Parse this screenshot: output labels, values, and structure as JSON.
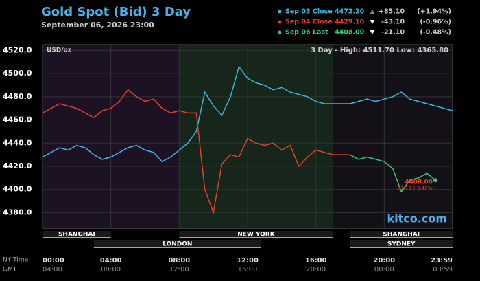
{
  "chart_data": {
    "type": "line",
    "title": "Gold Spot (Bid) 3 Day",
    "subtitle": "September 06, 2026 23:00",
    "unit_label": "USD/oz",
    "range_note": "3 Day - High: 4511.70  Low: 4365.80",
    "watermark": "kitco.com",
    "x_row_labels": [
      "NY Time",
      "GMT"
    ],
    "xlim": [
      0,
      24
    ],
    "xticks": [
      {
        "value": 0,
        "label": "00:00"
      },
      {
        "value": 4,
        "label": "04:00"
      },
      {
        "value": 8,
        "label": "08:00"
      },
      {
        "value": 12,
        "label": "12:00"
      },
      {
        "value": 16,
        "label": "16:00"
      },
      {
        "value": 20,
        "label": "20:00"
      },
      {
        "value": 24,
        "label": "23:59"
      }
    ],
    "gmt_tick_labels": [
      "04:00",
      "08:00",
      "12:00",
      "16:00",
      "20:00",
      "00:00",
      "03:59"
    ],
    "ylim": [
      4366,
      4525
    ],
    "yticks": [
      {
        "value": 4380,
        "label": "4380.0"
      },
      {
        "value": 4400,
        "label": "4400.0"
      },
      {
        "value": 4420,
        "label": "4420.0"
      },
      {
        "value": 4440,
        "label": "4440.0"
      },
      {
        "value": 4460,
        "label": "4460.0"
      },
      {
        "value": 4480,
        "label": "4480.0"
      },
      {
        "value": 4500,
        "label": "4500.0"
      },
      {
        "value": 4520,
        "label": "4520.0"
      }
    ],
    "grid": true,
    "regions": [
      {
        "start": 0,
        "end": 8,
        "color": "#1c1224"
      },
      {
        "start": 8,
        "end": 17,
        "color": "#16261a"
      },
      {
        "start": 17,
        "end": 24,
        "color": "#141018"
      }
    ],
    "sessions": [
      {
        "name": "SHANGHAI",
        "start": 0,
        "end": 4,
        "row": 0
      },
      {
        "name": "LONDON",
        "start": 3,
        "end": 12.8,
        "row": 1
      },
      {
        "name": "NEW YORK",
        "start": 8,
        "end": 17,
        "row": 0
      },
      {
        "name": "SHANGHAI",
        "start": 18,
        "end": 24,
        "row": 0
      },
      {
        "name": "SYDNEY",
        "start": 18,
        "end": 24,
        "row": 1
      }
    ],
    "x": [
      0,
      0.5,
      1,
      1.5,
      2,
      2.5,
      3,
      3.5,
      4,
      4.5,
      5,
      5.5,
      6,
      6.5,
      7,
      7.5,
      8,
      8.5,
      9,
      9.5,
      10,
      10.5,
      11,
      11.5,
      12,
      12.5,
      13,
      13.5,
      14,
      14.5,
      15,
      15.5,
      16,
      16.5,
      17,
      17.5,
      18,
      18.5,
      19,
      19.5,
      20,
      20.5,
      21,
      21.5,
      22,
      22.5,
      23,
      23.5,
      24
    ],
    "series": [
      {
        "name": "Sep 03 Close",
        "color": "#3db8e0",
        "last": {
          "value": 4472.2,
          "label": "4472.20"
        },
        "change": {
          "value": 85.1,
          "label": "+85.10"
        },
        "change_pct": {
          "value": 1.94,
          "label": "(+1.94%)"
        },
        "values": [
          4428,
          4432,
          4436,
          4434,
          4438,
          4436,
          4430,
          4426,
          4428,
          4432,
          4436,
          4438,
          4434,
          4432,
          4424,
          4428,
          4434,
          4440,
          4450,
          4484,
          4472,
          4464,
          4480,
          4506,
          4496,
          4492,
          4490,
          4486,
          4488,
          4484,
          4482,
          4480,
          4476,
          4474,
          4474,
          4474,
          4474,
          4476,
          4478,
          4476,
          4478,
          4480,
          4484,
          4478,
          4476,
          4474,
          4472,
          4470,
          4468
        ]
      },
      {
        "name": "Sep 04 Close",
        "color": "#e8402a",
        "last": {
          "value": 4429.1,
          "label": "4429.10"
        },
        "change": {
          "value": -43.1,
          "label": "-43.10"
        },
        "change_pct": {
          "value": -0.96,
          "label": "(-0.96%)"
        },
        "values": [
          4466,
          4470,
          4474,
          4472,
          4470,
          4466,
          4462,
          4468,
          4470,
          4476,
          4486,
          4480,
          4476,
          4478,
          4470,
          4466,
          4468,
          4466,
          4466,
          4400,
          4380,
          4422,
          4430,
          4428,
          4444,
          4440,
          4438,
          4440,
          4434,
          4438,
          4420,
          4428,
          4434,
          4432,
          4430,
          4430,
          4430,
          null,
          null,
          null,
          null,
          null,
          null,
          null,
          null,
          null,
          null,
          null,
          null
        ]
      },
      {
        "name": "Sep 06 Last",
        "color": "#2ecc71",
        "last": {
          "value": 4408.0,
          "label": "4408.00"
        },
        "change": {
          "value": -21.1,
          "label": "-21.10"
        },
        "change_pct": {
          "value": -0.48,
          "label": "(-0.48%)"
        },
        "values": [
          null,
          null,
          null,
          null,
          null,
          null,
          null,
          null,
          null,
          null,
          null,
          null,
          null,
          null,
          null,
          null,
          null,
          null,
          null,
          null,
          null,
          null,
          null,
          null,
          null,
          null,
          null,
          null,
          null,
          null,
          null,
          null,
          null,
          null,
          null,
          null,
          4430,
          4426,
          4428,
          4426,
          4424,
          4418,
          4398,
          4408,
          4410,
          4414,
          4408,
          null,
          null
        ]
      }
    ]
  }
}
